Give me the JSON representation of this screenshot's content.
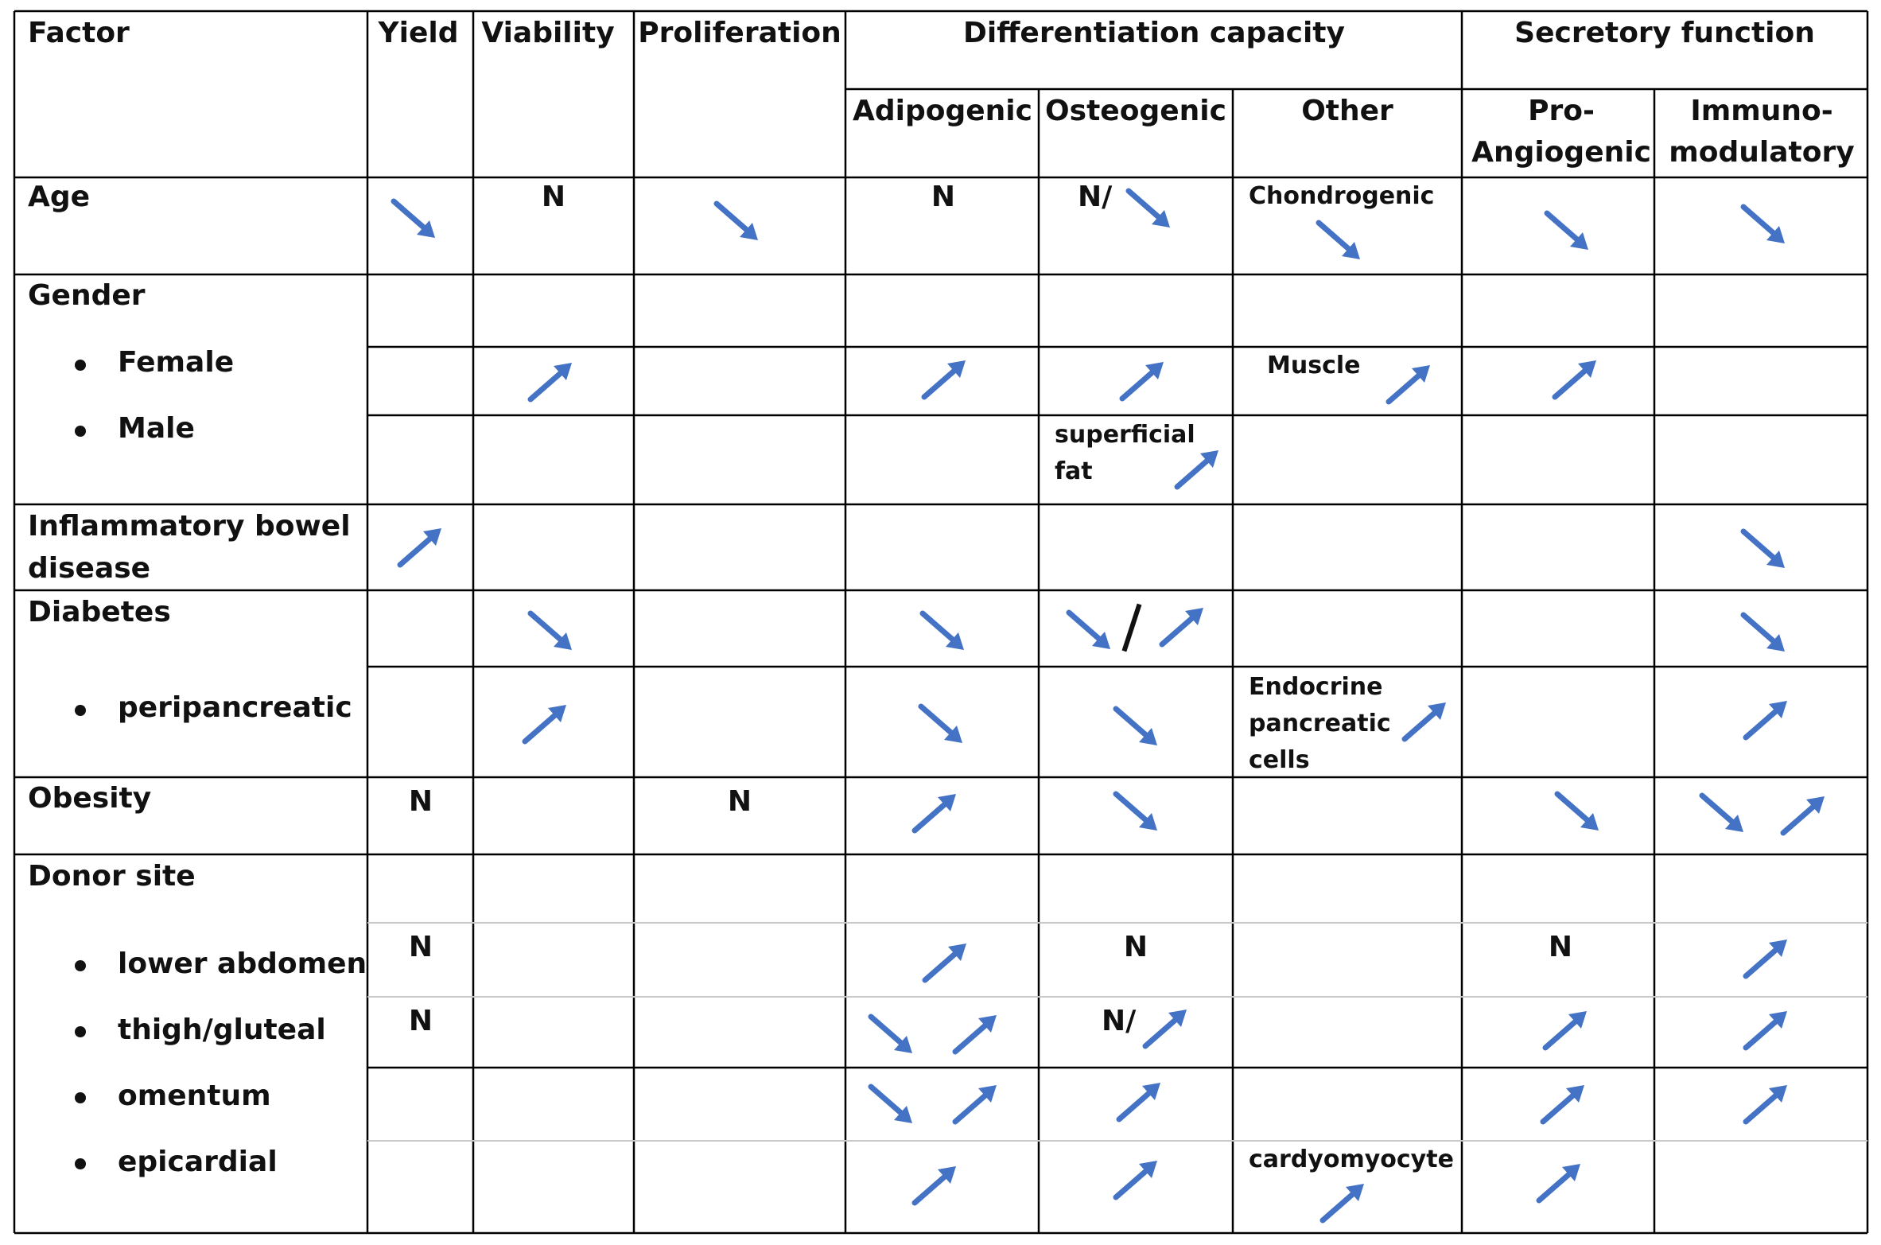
{
  "table": {
    "headers": {
      "factor": "Factor",
      "yield": "Yield",
      "viability": "Viability",
      "proliferation": "Proliferation",
      "differentiation": "Differentiation capacity",
      "adipogenic": "Adipogenic",
      "osteogenic": "Osteogenic",
      "other": "Other",
      "secretory": "Secretory function",
      "pro_angiogenic_line1": "Pro-",
      "pro_angiogenic_line2": "Angiogenic",
      "immuno_line1": "Immuno-",
      "immuno_line2": "modulatory"
    },
    "factors": {
      "age": "Age",
      "gender": "Gender",
      "female": "Female",
      "male": "Male",
      "ibd_line1": "Inflammatory bowel",
      "ibd_line2": "disease",
      "diabetes": "Diabetes",
      "peripancreatic": "peripancreatic",
      "obesity": "Obesity",
      "donor_site": "Donor site",
      "lower_abdomen": "lower abdomen",
      "thigh_gluteal": "thigh/gluteal",
      "omentum": "omentum",
      "epicardial": "epicardial"
    },
    "cell_text": {
      "n": "N",
      "n_slash": "N/",
      "chondrogenic": "Chondrogenic",
      "muscle": "Muscle",
      "superficial": "superficial",
      "fat": "fat",
      "endocrine": "Endocrine",
      "pancreatic": "pancreatic",
      "cells": "cells",
      "cardyomyocyte": "cardyomyocyte"
    },
    "arrow_legend": {
      "down": "decrease",
      "up": "increase"
    },
    "arrows": {
      "age": {
        "yield": "down",
        "proliferation": "down",
        "osteogenic": "down",
        "other": "down",
        "pro_angiogenic": "down",
        "immunomodulatory": "down"
      },
      "female": {
        "viability": "up",
        "adipogenic": "up",
        "osteogenic": "up",
        "other": "up",
        "pro_angiogenic": "up"
      },
      "male": {
        "osteogenic": "up"
      },
      "ibd": {
        "yield": "up",
        "immunomodulatory": "down"
      },
      "diabetes": {
        "viability": "down",
        "adipogenic": "down",
        "osteogenic": [
          "down",
          "up"
        ],
        "immunomodulatory": "down"
      },
      "peripancreatic": {
        "viability": "up",
        "adipogenic": "down",
        "osteogenic": "down",
        "other": "up",
        "immunomodulatory": "up"
      },
      "obesity": {
        "adipogenic": "up",
        "osteogenic": "down",
        "pro_angiogenic": "down",
        "immunomodulatory": [
          "down",
          "up"
        ]
      },
      "lower_abdomen": {
        "adipogenic": "up",
        "immunomodulatory": "up"
      },
      "thigh_gluteal": {
        "adipogenic": [
          "down",
          "up"
        ],
        "osteogenic": "up",
        "pro_angiogenic": "up",
        "immunomodulatory": "up"
      },
      "omentum": {
        "adipogenic": [
          "down",
          "up"
        ],
        "osteogenic": "up",
        "pro_angiogenic": "up",
        "immunomodulatory": "up"
      },
      "epicardial": {
        "adipogenic": "up",
        "osteogenic": "up",
        "other": "up",
        "pro_angiogenic": "up"
      }
    }
  },
  "colors": {
    "arrow": "#4472c4",
    "border": "#000000",
    "sub_border": "#c9c9c9"
  }
}
